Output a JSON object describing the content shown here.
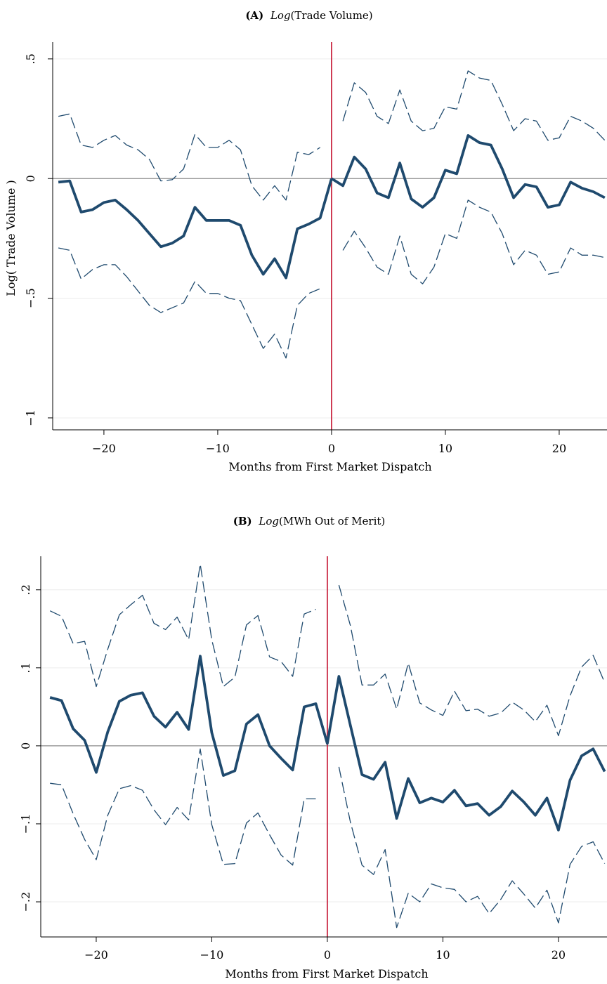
{
  "chart_data": [
    {
      "type": "line",
      "title_tag": "(A)",
      "title_main": "Log",
      "title_rest": "(Trade Volume)",
      "xlabel": "Months from First Market Dispatch",
      "ylabel": "Log( Trade Volume )",
      "xlim": [
        -24.5,
        24.2
      ],
      "ylim": [
        -1.05,
        0.57
      ],
      "xticks": [
        -20,
        -10,
        0,
        10,
        20
      ],
      "xtick_labels": [
        "−20",
        "−10",
        "0",
        "10",
        "20"
      ],
      "yticks": [
        0.5,
        0,
        -0.5,
        -1
      ],
      "ytick_labels": [
        ".5",
        "0",
        "−.5",
        "−1"
      ],
      "gridlines_y": [
        0.5,
        -0.5,
        -1
      ],
      "zero_line": 0,
      "event_line_x": 0,
      "colors": {
        "series": "#1f4a6e",
        "event_line": "#c4122f",
        "zero_line": "#8a8a8a",
        "grid": "#ececec"
      },
      "series": [
        {
          "role": "estimate",
          "style": "solid",
          "x": [
            -24,
            -23,
            -22,
            -21,
            -20,
            -19,
            -18,
            -17,
            -16,
            -15,
            -14,
            -13,
            -12,
            -11,
            -10,
            -9,
            -8,
            -7,
            -6,
            -5,
            -4,
            -3,
            -2,
            -1,
            0
          ],
          "values": [
            -0.015,
            -0.01,
            -0.14,
            -0.13,
            -0.1,
            -0.09,
            -0.13,
            -0.175,
            -0.23,
            -0.285,
            -0.27,
            -0.24,
            -0.12,
            -0.175,
            -0.175,
            -0.175,
            -0.195,
            -0.32,
            -0.4,
            -0.335,
            -0.415,
            -0.21,
            -0.19,
            -0.165,
            0
          ]
        },
        {
          "role": "estimate",
          "style": "solid",
          "x": [
            0,
            1,
            2,
            3,
            4,
            5,
            6,
            7,
            8,
            9,
            10,
            11,
            12,
            13,
            14,
            15,
            16,
            17,
            18,
            19,
            20,
            21,
            22,
            23,
            24
          ],
          "values": [
            0,
            -0.03,
            0.09,
            0.04,
            -0.06,
            -0.08,
            0.065,
            -0.085,
            -0.12,
            -0.08,
            0.035,
            0.02,
            0.18,
            0.15,
            0.14,
            0.04,
            -0.08,
            -0.025,
            -0.035,
            -0.12,
            -0.11,
            -0.015,
            -0.04,
            -0.055,
            -0.08
          ]
        },
        {
          "role": "upper_ci",
          "style": "dashed",
          "x": [
            -24,
            -23,
            -22,
            -21,
            -20,
            -19,
            -18,
            -17,
            -16,
            -15,
            -14,
            -13,
            -12,
            -11,
            -10,
            -9,
            -8,
            -7,
            -6,
            -5,
            -4,
            -3,
            -2,
            -1
          ],
          "values": [
            0.26,
            0.27,
            0.14,
            0.13,
            0.16,
            0.18,
            0.14,
            0.12,
            0.08,
            -0.01,
            -0.005,
            0.04,
            0.185,
            0.13,
            0.13,
            0.16,
            0.12,
            -0.03,
            -0.09,
            -0.03,
            -0.09,
            0.11,
            0.1,
            0.13
          ]
        },
        {
          "role": "upper_ci",
          "style": "dashed",
          "x": [
            1,
            2,
            3,
            4,
            5,
            6,
            7,
            8,
            9,
            10,
            11,
            12,
            13,
            14,
            15,
            16,
            17,
            18,
            19,
            20,
            21,
            22,
            23,
            24
          ],
          "values": [
            0.24,
            0.4,
            0.36,
            0.26,
            0.23,
            0.37,
            0.24,
            0.2,
            0.21,
            0.3,
            0.29,
            0.45,
            0.42,
            0.41,
            0.31,
            0.2,
            0.25,
            0.24,
            0.16,
            0.17,
            0.26,
            0.24,
            0.21,
            0.16
          ]
        },
        {
          "role": "lower_ci",
          "style": "dashed",
          "x": [
            -24,
            -23,
            -22,
            -21,
            -20,
            -19,
            -18,
            -17,
            -16,
            -15,
            -14,
            -13,
            -12,
            -11,
            -10,
            -9,
            -8,
            -7,
            -6,
            -5,
            -4,
            -3,
            -2,
            -1
          ],
          "values": [
            -0.29,
            -0.3,
            -0.42,
            -0.38,
            -0.36,
            -0.36,
            -0.41,
            -0.47,
            -0.53,
            -0.56,
            -0.54,
            -0.52,
            -0.43,
            -0.48,
            -0.48,
            -0.5,
            -0.51,
            -0.61,
            -0.71,
            -0.65,
            -0.75,
            -0.53,
            -0.48,
            -0.46
          ]
        },
        {
          "role": "lower_ci",
          "style": "dashed",
          "x": [
            1,
            2,
            3,
            4,
            5,
            6,
            7,
            8,
            9,
            10,
            11,
            12,
            13,
            14,
            15,
            16,
            17,
            18,
            19,
            20,
            21,
            22,
            23,
            24
          ],
          "values": [
            -0.3,
            -0.22,
            -0.29,
            -0.37,
            -0.4,
            -0.24,
            -0.4,
            -0.44,
            -0.37,
            -0.23,
            -0.25,
            -0.09,
            -0.12,
            -0.14,
            -0.23,
            -0.36,
            -0.3,
            -0.32,
            -0.4,
            -0.39,
            -0.29,
            -0.32,
            -0.32,
            -0.33
          ]
        }
      ]
    },
    {
      "type": "line",
      "title_tag": "(B)",
      "title_main": "Log",
      "title_rest": "(MWh Out of Merit)",
      "xlabel": "Months from First Market Dispatch",
      "ylabel": "",
      "xlim": [
        -24.8,
        24.2
      ],
      "ylim": [
        -0.245,
        0.243
      ],
      "xticks": [
        -20,
        -10,
        0,
        10,
        20
      ],
      "xtick_labels": [
        "−20",
        "−10",
        "0",
        "10",
        "20"
      ],
      "yticks": [
        0.2,
        0.1,
        0,
        -0.1,
        -0.2
      ],
      "ytick_labels": [
        ".2",
        ".1",
        "0",
        "−.1",
        "−.2"
      ],
      "gridlines_y": [
        0.2,
        0.1,
        -0.1,
        -0.2
      ],
      "zero_line": 0,
      "event_line_x": 0,
      "colors": {
        "series": "#1f4a6e",
        "event_line": "#c4122f",
        "zero_line": "#8a8a8a",
        "grid": "#ececec"
      },
      "series": [
        {
          "role": "estimate",
          "style": "solid",
          "x": [
            -24,
            -23,
            -22,
            -21,
            -20,
            -19,
            -18,
            -17,
            -16,
            -15,
            -14,
            -13,
            -12,
            -11,
            -10,
            -9,
            -8,
            -7,
            -6,
            -5,
            -4,
            -3,
            -2,
            -1,
            0,
            1,
            2,
            3,
            4,
            5,
            6,
            7,
            8,
            9,
            10,
            11,
            12,
            13,
            14,
            15,
            16,
            17,
            18,
            19,
            20,
            21,
            22,
            23,
            24
          ],
          "values": [
            0.062,
            0.058,
            0.022,
            0.007,
            -0.034,
            0.018,
            0.057,
            0.065,
            0.068,
            0.038,
            0.024,
            0.043,
            0.021,
            0.115,
            0.017,
            -0.038,
            -0.032,
            0.028,
            0.04,
            0.0,
            -0.016,
            -0.031,
            0.05,
            0.054,
            0.003,
            0.089,
            0.026,
            -0.037,
            -0.043,
            -0.021,
            -0.093,
            -0.042,
            -0.073,
            -0.067,
            -0.072,
            -0.057,
            -0.077,
            -0.074,
            -0.089,
            -0.078,
            -0.058,
            -0.072,
            -0.089,
            -0.067,
            -0.108,
            -0.044,
            -0.013,
            -0.004,
            -0.033
          ]
        },
        {
          "role": "upper_ci",
          "style": "dashed",
          "x": [
            -24,
            -23,
            -22,
            -21,
            -20,
            -19,
            -18,
            -17,
            -16,
            -15,
            -14,
            -13,
            -12,
            -11,
            -10,
            -9,
            -8,
            -7,
            -6,
            -5,
            -4,
            -3,
            -2,
            -1
          ],
          "values": [
            0.173,
            0.166,
            0.131,
            0.134,
            0.076,
            0.124,
            0.168,
            0.181,
            0.193,
            0.157,
            0.149,
            0.165,
            0.136,
            0.233,
            0.136,
            0.076,
            0.088,
            0.155,
            0.167,
            0.114,
            0.108,
            0.089,
            0.169,
            0.175
          ]
        },
        {
          "role": "upper_ci",
          "style": "dashed",
          "x": [
            1,
            2,
            3,
            4,
            5,
            6,
            7,
            8,
            9,
            10,
            11,
            12,
            13,
            14,
            15,
            16,
            17,
            18,
            19,
            20,
            21,
            22,
            23,
            24
          ],
          "values": [
            0.206,
            0.154,
            0.078,
            0.078,
            0.092,
            0.047,
            0.106,
            0.055,
            0.046,
            0.039,
            0.07,
            0.045,
            0.047,
            0.038,
            0.042,
            0.056,
            0.046,
            0.031,
            0.052,
            0.013,
            0.064,
            0.101,
            0.116,
            0.081
          ]
        },
        {
          "role": "lower_ci",
          "style": "dashed",
          "x": [
            -24,
            -23,
            -22,
            -21,
            -20,
            -19,
            -18,
            -17,
            -16,
            -15,
            -14,
            -13,
            -12,
            -11,
            -10,
            -9,
            -8,
            -7,
            -6,
            -5,
            -4,
            -3,
            -2,
            -1
          ],
          "values": [
            -0.048,
            -0.05,
            -0.087,
            -0.12,
            -0.146,
            -0.089,
            -0.055,
            -0.051,
            -0.057,
            -0.082,
            -0.101,
            -0.079,
            -0.095,
            -0.004,
            -0.101,
            -0.152,
            -0.151,
            -0.099,
            -0.086,
            -0.114,
            -0.14,
            -0.153,
            -0.068,
            -0.068
          ]
        },
        {
          "role": "lower_ci",
          "style": "dashed",
          "x": [
            1,
            2,
            3,
            4,
            5,
            6,
            7,
            8,
            9,
            10,
            11,
            12,
            13,
            14,
            15,
            16,
            17,
            18,
            19,
            20,
            21,
            22,
            23,
            24
          ],
          "values": [
            -0.027,
            -0.098,
            -0.153,
            -0.165,
            -0.133,
            -0.233,
            -0.189,
            -0.2,
            -0.177,
            -0.182,
            -0.184,
            -0.2,
            -0.193,
            -0.215,
            -0.197,
            -0.173,
            -0.19,
            -0.208,
            -0.185,
            -0.227,
            -0.152,
            -0.129,
            -0.123,
            -0.151
          ]
        }
      ]
    }
  ]
}
